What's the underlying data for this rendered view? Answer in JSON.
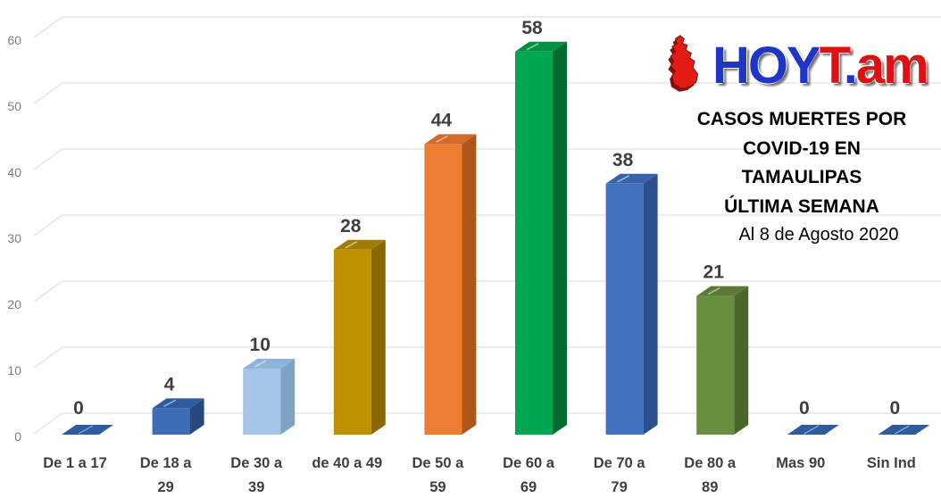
{
  "logo": {
    "hoy": "HOY",
    "t": "T",
    "dot": ".",
    "am": "am",
    "map_color": "#e41b13",
    "map_shadow": "#8a1008"
  },
  "info_panel": {
    "title_lines": [
      "CASOS MUERTES POR",
      "COVID-19 EN",
      "TAMAULIPAS",
      "ÚLTIMA SEMANA"
    ],
    "subtitle": "Al 8 de Agosto 2020"
  },
  "chart_data": {
    "type": "bar",
    "style": "3d-column",
    "title": "",
    "xlabel": "",
    "ylabel": "",
    "grid": true,
    "grid_color": "#d9d9d9",
    "legend": "none",
    "ylim": [
      0,
      60
    ],
    "yticks": [
      0,
      10,
      20,
      30,
      40,
      50,
      60
    ],
    "categories": [
      "De 1 a 17",
      "De 18 a 29",
      "De 30 a 39",
      "de 40 a 49",
      "De 50 a 59",
      "De 60 a 69",
      "De 70 a 79",
      "De 80 a 89",
      "Mas 90",
      "Sin Ind"
    ],
    "category_lines": [
      [
        "De 1 a 17"
      ],
      [
        "De 18 a",
        "29"
      ],
      [
        "De 30 a",
        "39"
      ],
      [
        "de 40 a 49"
      ],
      [
        "De 50 a",
        "59"
      ],
      [
        "De 60 a",
        "69"
      ],
      [
        "De 70 a",
        "79"
      ],
      [
        "De 80 a",
        "89"
      ],
      [
        "Mas 90"
      ],
      [
        "Sin Ind"
      ]
    ],
    "category_ids": [
      "de-1-a-17",
      "de-18-a-29",
      "de-30-a-39",
      "de-40-a-49",
      "de-50-a-59",
      "de-60-a-69",
      "de-70-a-79",
      "de-80-a-89",
      "mas-90",
      "sin-ind"
    ],
    "values": [
      0,
      4,
      10,
      28,
      44,
      58,
      38,
      21,
      0,
      0
    ],
    "bar_colors": [
      {
        "front": "#3e6cb5",
        "top": "#2e5c9e",
        "side": "#28497e"
      },
      {
        "front": "#3e6cb5",
        "top": "#2e5c9e",
        "side": "#28497e"
      },
      {
        "front": "#a5c5e8",
        "top": "#8fb4d9",
        "side": "#7fa3c6"
      },
      {
        "front": "#bf9000",
        "top": "#a37b05",
        "side": "#8a6800"
      },
      {
        "front": "#ed7d31",
        "top": "#d26b29",
        "side": "#ae5519"
      },
      {
        "front": "#00a650",
        "top": "#009143",
        "side": "#006b31"
      },
      {
        "front": "#4272c0",
        "top": "#3763a8",
        "side": "#2b4f8e"
      },
      {
        "front": "#6a8e3f",
        "top": "#5a7a35",
        "side": "#4a662b"
      },
      {
        "front": "#3e6cb5",
        "top": "#2e5c9e",
        "side": "#28497e"
      },
      {
        "front": "#3e6cb5",
        "top": "#2e5c9e",
        "side": "#28497e"
      }
    ]
  }
}
